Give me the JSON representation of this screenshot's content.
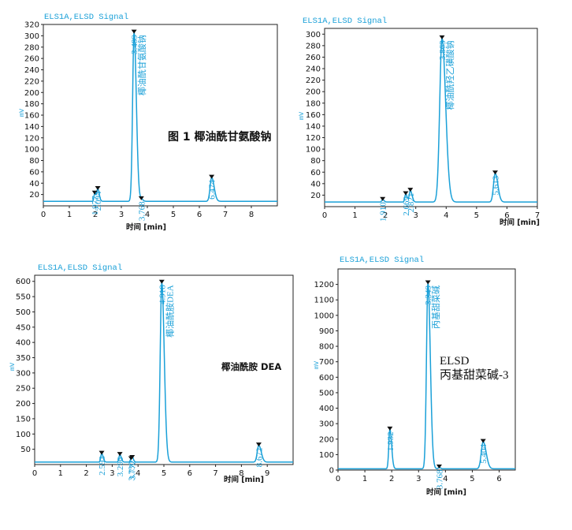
{
  "chart_data": [
    {
      "type": "line",
      "signal_title": "ELS1A,ELSD Signal",
      "ylabel": "mV",
      "xlabel": "时间 [min]",
      "xlim": [
        0,
        9
      ],
      "ylim": [
        0,
        320
      ],
      "xticks": [
        "0",
        "1",
        "2",
        "3",
        "4",
        "5",
        "6",
        "7",
        "8"
      ],
      "yticks": [
        "20",
        "40",
        "60",
        "80",
        "100",
        "120",
        "140",
        "160",
        "180",
        "200",
        "220",
        "240",
        "260",
        "280",
        "300",
        "320"
      ],
      "baseline": 8,
      "annotation": [
        "图 1  椰油酰甘氨酸钠"
      ],
      "peaks": [
        {
          "rt": 1.977,
          "label": "1.977",
          "height": 14,
          "width": 0.03
        },
        {
          "rt": 2.094,
          "label": "2.094",
          "height": 22,
          "width": 0.035
        },
        {
          "rt": 3.489,
          "label": "3.489",
          "name": "椰油酰甘氨酸钠",
          "height": 298,
          "width": 0.055
        },
        {
          "rt": 3.768,
          "label": "3.768",
          "height": 4,
          "width": 0.04
        },
        {
          "rt": 6.474,
          "label": "6.474",
          "height": 42,
          "width": 0.06
        }
      ]
    },
    {
      "type": "line",
      "signal_title": "ELS1A,ELSD Signal",
      "ylabel": "mV",
      "xlabel": "时间 [min]",
      "xlim": [
        0,
        7
      ],
      "ylim": [
        0,
        310
      ],
      "xticks": [
        "0",
        "1",
        "2",
        "3",
        "4",
        "5",
        "6",
        "7"
      ],
      "yticks": [
        "20",
        "40",
        "60",
        "80",
        "100",
        "120",
        "140",
        "160",
        "180",
        "200",
        "220",
        "240",
        "260",
        "280",
        "300"
      ],
      "baseline": 8,
      "annotation": [],
      "peaks": [
        {
          "rt": 1.91,
          "label": "1.910",
          "height": 4,
          "width": 0.03
        },
        {
          "rt": 2.669,
          "label": "2.669",
          "height": 14,
          "width": 0.03
        },
        {
          "rt": 2.821,
          "label": "2.821",
          "height": 20,
          "width": 0.035
        },
        {
          "rt": 3.863,
          "label": "3.863",
          "name": "椰油酰羟乙磺酸钠",
          "height": 285,
          "width": 0.075
        },
        {
          "rt": 5.613,
          "label": "5.613",
          "height": 50,
          "width": 0.055
        }
      ]
    },
    {
      "type": "line",
      "signal_title": "ELS1A,ELSD Signal",
      "ylabel": "mV",
      "xlabel": "时间 [min]",
      "xlim": [
        0,
        10
      ],
      "ylim": [
        0,
        620
      ],
      "xticks": [
        "0",
        "1",
        "2",
        "3",
        "4",
        "5",
        "6",
        "7",
        "8",
        "9"
      ],
      "yticks": [
        "50",
        "100",
        "150",
        "200",
        "250",
        "300",
        "350",
        "400",
        "450",
        "500",
        "550",
        "600"
      ],
      "baseline": 8,
      "annotation": [
        "椰油酰胺 DEA"
      ],
      "peaks": [
        {
          "rt": 2.593,
          "label": "2.593",
          "height": 28,
          "width": 0.035
        },
        {
          "rt": 3.296,
          "label": "3.296",
          "height": 24,
          "width": 0.035
        },
        {
          "rt": 3.73,
          "label": "3.730",
          "height": 10,
          "width": 0.03
        },
        {
          "rt": 3.772,
          "label": "3.772",
          "height": 14,
          "width": 0.03
        },
        {
          "rt": 4.918,
          "label": "4.918",
          "name": "椰油酰胺DEA",
          "height": 588,
          "width": 0.06
        },
        {
          "rt": 8.672,
          "label": "8.672",
          "height": 55,
          "width": 0.06
        }
      ]
    },
    {
      "type": "line",
      "signal_title": "ELS1A,ELSD Signal",
      "ylabel": "mV",
      "xlabel": "时间 [min]",
      "xlim": [
        0,
        6.6
      ],
      "ylim": [
        0,
        1300
      ],
      "xticks": [
        "0",
        "1",
        "2",
        "3",
        "4",
        "5",
        "6"
      ],
      "yticks": [
        "0",
        "100",
        "200",
        "300",
        "400",
        "500",
        "600",
        "700",
        "800",
        "900",
        "1000",
        "1100",
        "1200"
      ],
      "baseline": 8,
      "annotation": [
        "ELSD",
        "丙基甜菜碱-3"
      ],
      "peaks": [
        {
          "rt": 1.932,
          "label": "1.932",
          "height": 255,
          "width": 0.04
        },
        {
          "rt": 3.349,
          "label": "3.349",
          "name": "丙基甜菜碱",
          "height": 1200,
          "width": 0.055
        },
        {
          "rt": 3.768,
          "label": "3.768",
          "height": 10,
          "width": 0.03
        },
        {
          "rt": 5.404,
          "label": "5.404",
          "height": 175,
          "width": 0.07
        }
      ]
    }
  ]
}
